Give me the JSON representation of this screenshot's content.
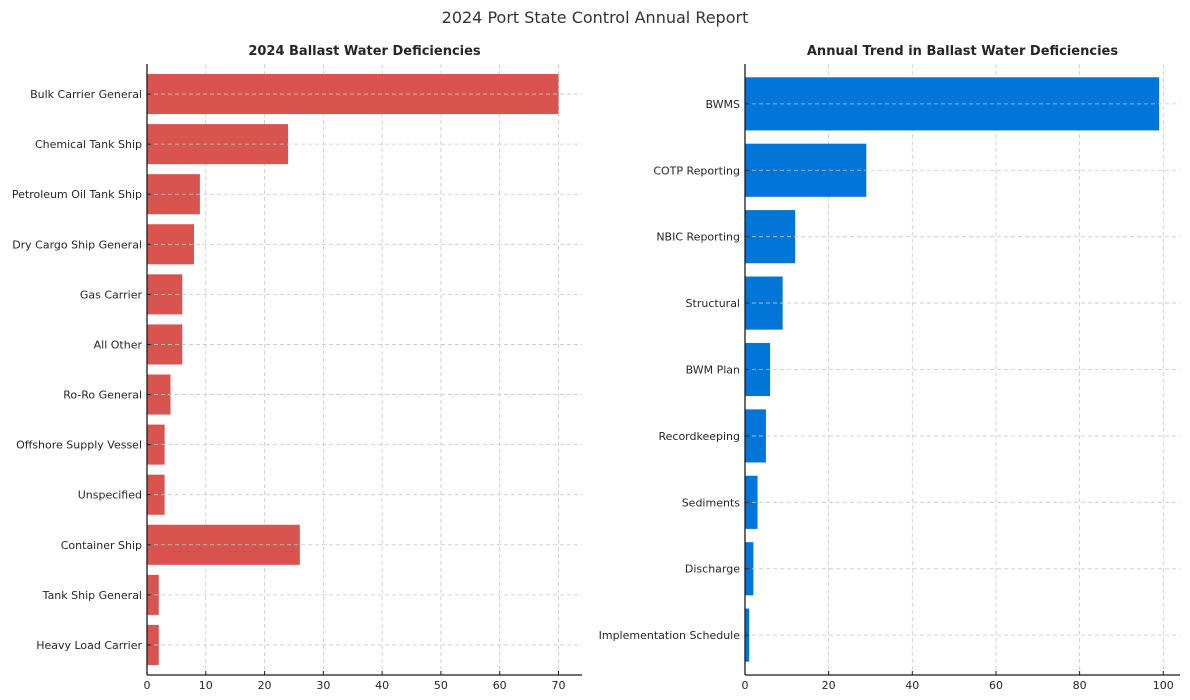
{
  "title": "2024 Port State Control Annual Report",
  "chart_data": [
    {
      "type": "bar",
      "orientation": "horizontal",
      "title": "2024 Ballast Water Deficiencies",
      "xlabel": "",
      "ylabel": "",
      "color": "#d9534f",
      "xlim": [
        0,
        74
      ],
      "xticks": [
        0,
        10,
        20,
        30,
        40,
        50,
        60,
        70
      ],
      "grid": true,
      "categories": [
        "Bulk Carrier General",
        "Chemical Tank Ship",
        "Petroleum Oil Tank Ship",
        "Dry Cargo Ship General",
        "Gas Carrier",
        "All Other",
        "Ro-Ro General",
        "Offshore Supply Vessel",
        "Unspecified",
        "Container Ship",
        "Tank Ship General",
        "Heavy Load Carrier"
      ],
      "values": [
        70,
        24,
        9,
        8,
        6,
        6,
        4,
        3,
        3,
        26,
        2,
        2
      ]
    },
    {
      "type": "bar",
      "orientation": "horizontal",
      "title": "Annual Trend in Ballast Water Deficiencies",
      "xlabel": "",
      "ylabel": "",
      "color": "#0275d8",
      "xlim": [
        0,
        104
      ],
      "xticks": [
        0,
        20,
        40,
        60,
        80,
        100
      ],
      "grid": true,
      "categories": [
        "BWMS",
        "COTP Reporting",
        "NBIC Reporting",
        "Structural",
        "BWM Plan",
        "Recordkeeping",
        "Sediments",
        "Discharge",
        "Implementation Schedule"
      ],
      "values": [
        99,
        29,
        12,
        9,
        6,
        5,
        3,
        2,
        1
      ]
    }
  ]
}
